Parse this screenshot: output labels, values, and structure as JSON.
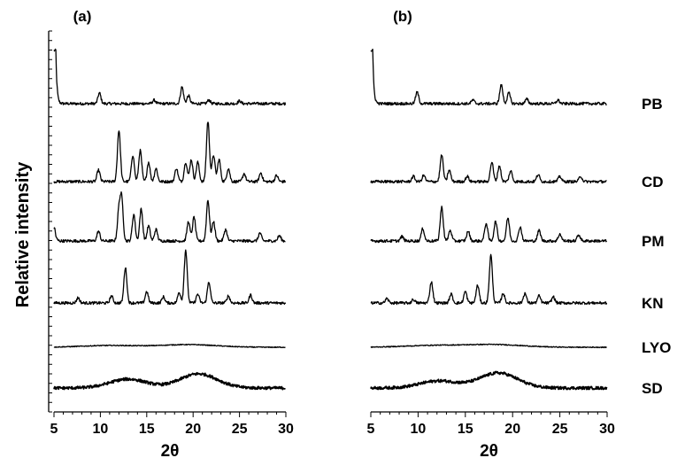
{
  "chart_data": [
    {
      "panel": "(a)",
      "type": "line",
      "xlabel": "2θ",
      "ylabel": "Relative intensity",
      "xlim": [
        5,
        30
      ],
      "xticks": [
        5,
        10,
        15,
        20,
        25,
        30
      ],
      "series": [
        {
          "name": "PB",
          "peaks": [
            [
              5.2,
              60
            ],
            [
              9.9,
              12
            ],
            [
              15.8,
              4
            ],
            [
              18.8,
              19
            ],
            [
              19.5,
              9
            ],
            [
              21.7,
              4
            ],
            [
              25.0,
              3
            ]
          ]
        },
        {
          "name": "CD",
          "peaks": [
            [
              9.8,
              13
            ],
            [
              12.0,
              58
            ],
            [
              13.5,
              30
            ],
            [
              14.3,
              35
            ],
            [
              15.2,
              22
            ],
            [
              16.0,
              15
            ],
            [
              18.2,
              15
            ],
            [
              19.2,
              22
            ],
            [
              19.8,
              25
            ],
            [
              20.5,
              22
            ],
            [
              21.6,
              68
            ],
            [
              22.2,
              30
            ],
            [
              22.8,
              25
            ],
            [
              23.8,
              15
            ],
            [
              25.5,
              9
            ],
            [
              27.3,
              10
            ],
            [
              29.0,
              7
            ]
          ]
        },
        {
          "name": "PM",
          "peaks": [
            [
              5.1,
              14
            ],
            [
              9.8,
              11
            ],
            [
              12.0,
              34
            ],
            [
              12.3,
              46
            ],
            [
              13.6,
              30
            ],
            [
              14.4,
              36
            ],
            [
              15.2,
              17
            ],
            [
              16.0,
              13
            ],
            [
              19.5,
              22
            ],
            [
              20.1,
              27
            ],
            [
              21.6,
              46
            ],
            [
              22.2,
              22
            ],
            [
              23.5,
              13
            ],
            [
              27.2,
              9
            ],
            [
              29.3,
              6
            ]
          ]
        },
        {
          "name": "KN",
          "peaks": [
            [
              7.6,
              6
            ],
            [
              11.2,
              8
            ],
            [
              12.7,
              40
            ],
            [
              15.0,
              13
            ],
            [
              16.8,
              7
            ],
            [
              18.5,
              12
            ],
            [
              19.2,
              60
            ],
            [
              20.5,
              10
            ],
            [
              21.7,
              24
            ],
            [
              23.8,
              8
            ],
            [
              26.2,
              9
            ]
          ]
        },
        {
          "name": "LYO",
          "peaks": [
            [
              11.0,
              2
            ],
            [
              19.5,
              3
            ]
          ]
        },
        {
          "name": "SD",
          "peaks": [
            [
              13.0,
              10
            ],
            [
              20.6,
              16
            ]
          ]
        }
      ]
    },
    {
      "panel": "(b)",
      "type": "line",
      "xlabel": "2θ",
      "xlim": [
        5,
        30
      ],
      "xticks": [
        5,
        10,
        15,
        20,
        25,
        30
      ],
      "series": [
        {
          "name": "PB",
          "peaks": [
            [
              5.2,
              60
            ],
            [
              9.9,
              13
            ],
            [
              15.8,
              4
            ],
            [
              18.8,
              21
            ],
            [
              19.6,
              12
            ],
            [
              21.5,
              5
            ],
            [
              24.8,
              4
            ]
          ]
        },
        {
          "name": "CD",
          "peaks": [
            [
              9.5,
              6
            ],
            [
              10.6,
              7
            ],
            [
              12.5,
              30
            ],
            [
              13.3,
              13
            ],
            [
              15.2,
              6
            ],
            [
              17.8,
              22
            ],
            [
              18.6,
              18
            ],
            [
              19.8,
              12
            ],
            [
              22.7,
              8
            ],
            [
              25.0,
              6
            ],
            [
              27.2,
              6
            ]
          ]
        },
        {
          "name": "PM",
          "peaks": [
            [
              8.3,
              5
            ],
            [
              10.5,
              14
            ],
            [
              12.5,
              38
            ],
            [
              13.4,
              12
            ],
            [
              15.3,
              11
            ],
            [
              17.2,
              20
            ],
            [
              18.2,
              22
            ],
            [
              19.5,
              26
            ],
            [
              20.8,
              16
            ],
            [
              22.8,
              12
            ],
            [
              25.0,
              8
            ],
            [
              27.0,
              7
            ]
          ]
        },
        {
          "name": "KN",
          "peaks": [
            [
              6.7,
              5
            ],
            [
              9.5,
              4
            ],
            [
              11.4,
              24
            ],
            [
              13.5,
              10
            ],
            [
              15.0,
              13
            ],
            [
              16.3,
              20
            ],
            [
              17.7,
              54
            ],
            [
              19.0,
              11
            ],
            [
              21.3,
              11
            ],
            [
              22.8,
              8
            ],
            [
              24.3,
              7
            ]
          ]
        },
        {
          "name": "LYO",
          "peaks": [
            [
              11.5,
              2
            ],
            [
              18.0,
              3
            ]
          ]
        },
        {
          "name": "SD",
          "peaks": [
            [
              12.2,
              8
            ],
            [
              18.5,
              17
            ]
          ]
        }
      ]
    }
  ]
}
